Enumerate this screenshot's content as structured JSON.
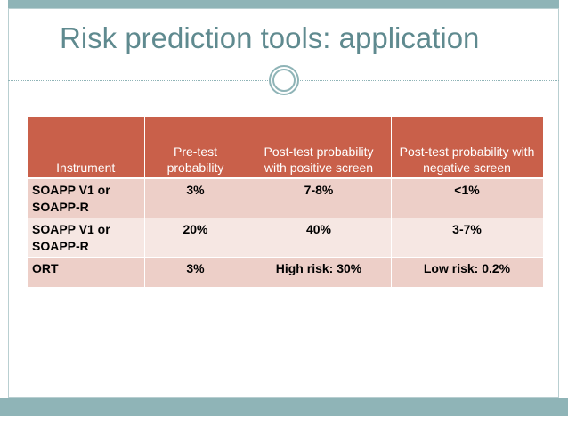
{
  "slide": {
    "title": "Risk prediction tools: application",
    "colors": {
      "accent": "#8fb4b7",
      "title": "#5f8a8f",
      "header": "#c9604a",
      "row_dark": "#edcfc8",
      "row_light": "#f6e7e3"
    }
  },
  "table": {
    "headers": [
      "Instrument",
      "Pre-test probability",
      "Post-test probability with positive screen",
      "Post-test probability with negative screen"
    ],
    "rows": [
      [
        "SOAPP V1 or SOAPP-R",
        "3%",
        "7-8%",
        "<1%"
      ],
      [
        "SOAPP V1 or SOAPP-R",
        "20%",
        "40%",
        "3-7%"
      ],
      [
        "ORT",
        "3%",
        "High risk: 30%",
        "Low risk: 0.2%"
      ]
    ]
  }
}
